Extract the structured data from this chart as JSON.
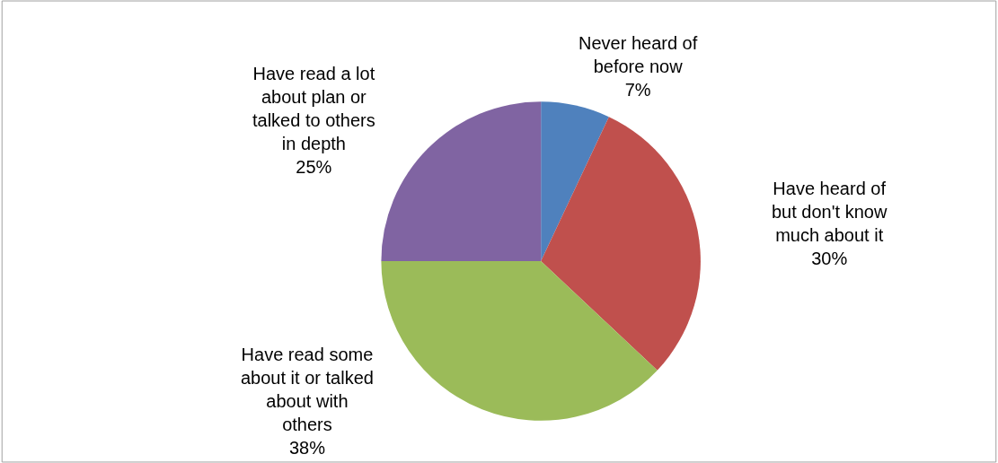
{
  "chart_data": {
    "type": "pie",
    "categories": [
      "Never heard of\nbefore now",
      "Have heard of\nbut don't know\nmuch about it",
      "Have read some\nabout it or talked\nabout with\nothers",
      "Have read a lot\nabout plan or\ntalked to others\nin depth"
    ],
    "values": [
      7,
      30,
      38,
      25
    ],
    "value_labels": [
      "7%",
      "30%",
      "38%",
      "25%"
    ],
    "colors": [
      "#4f81bd",
      "#c0504d",
      "#9bbb59",
      "#8064a2"
    ],
    "legend": false
  }
}
